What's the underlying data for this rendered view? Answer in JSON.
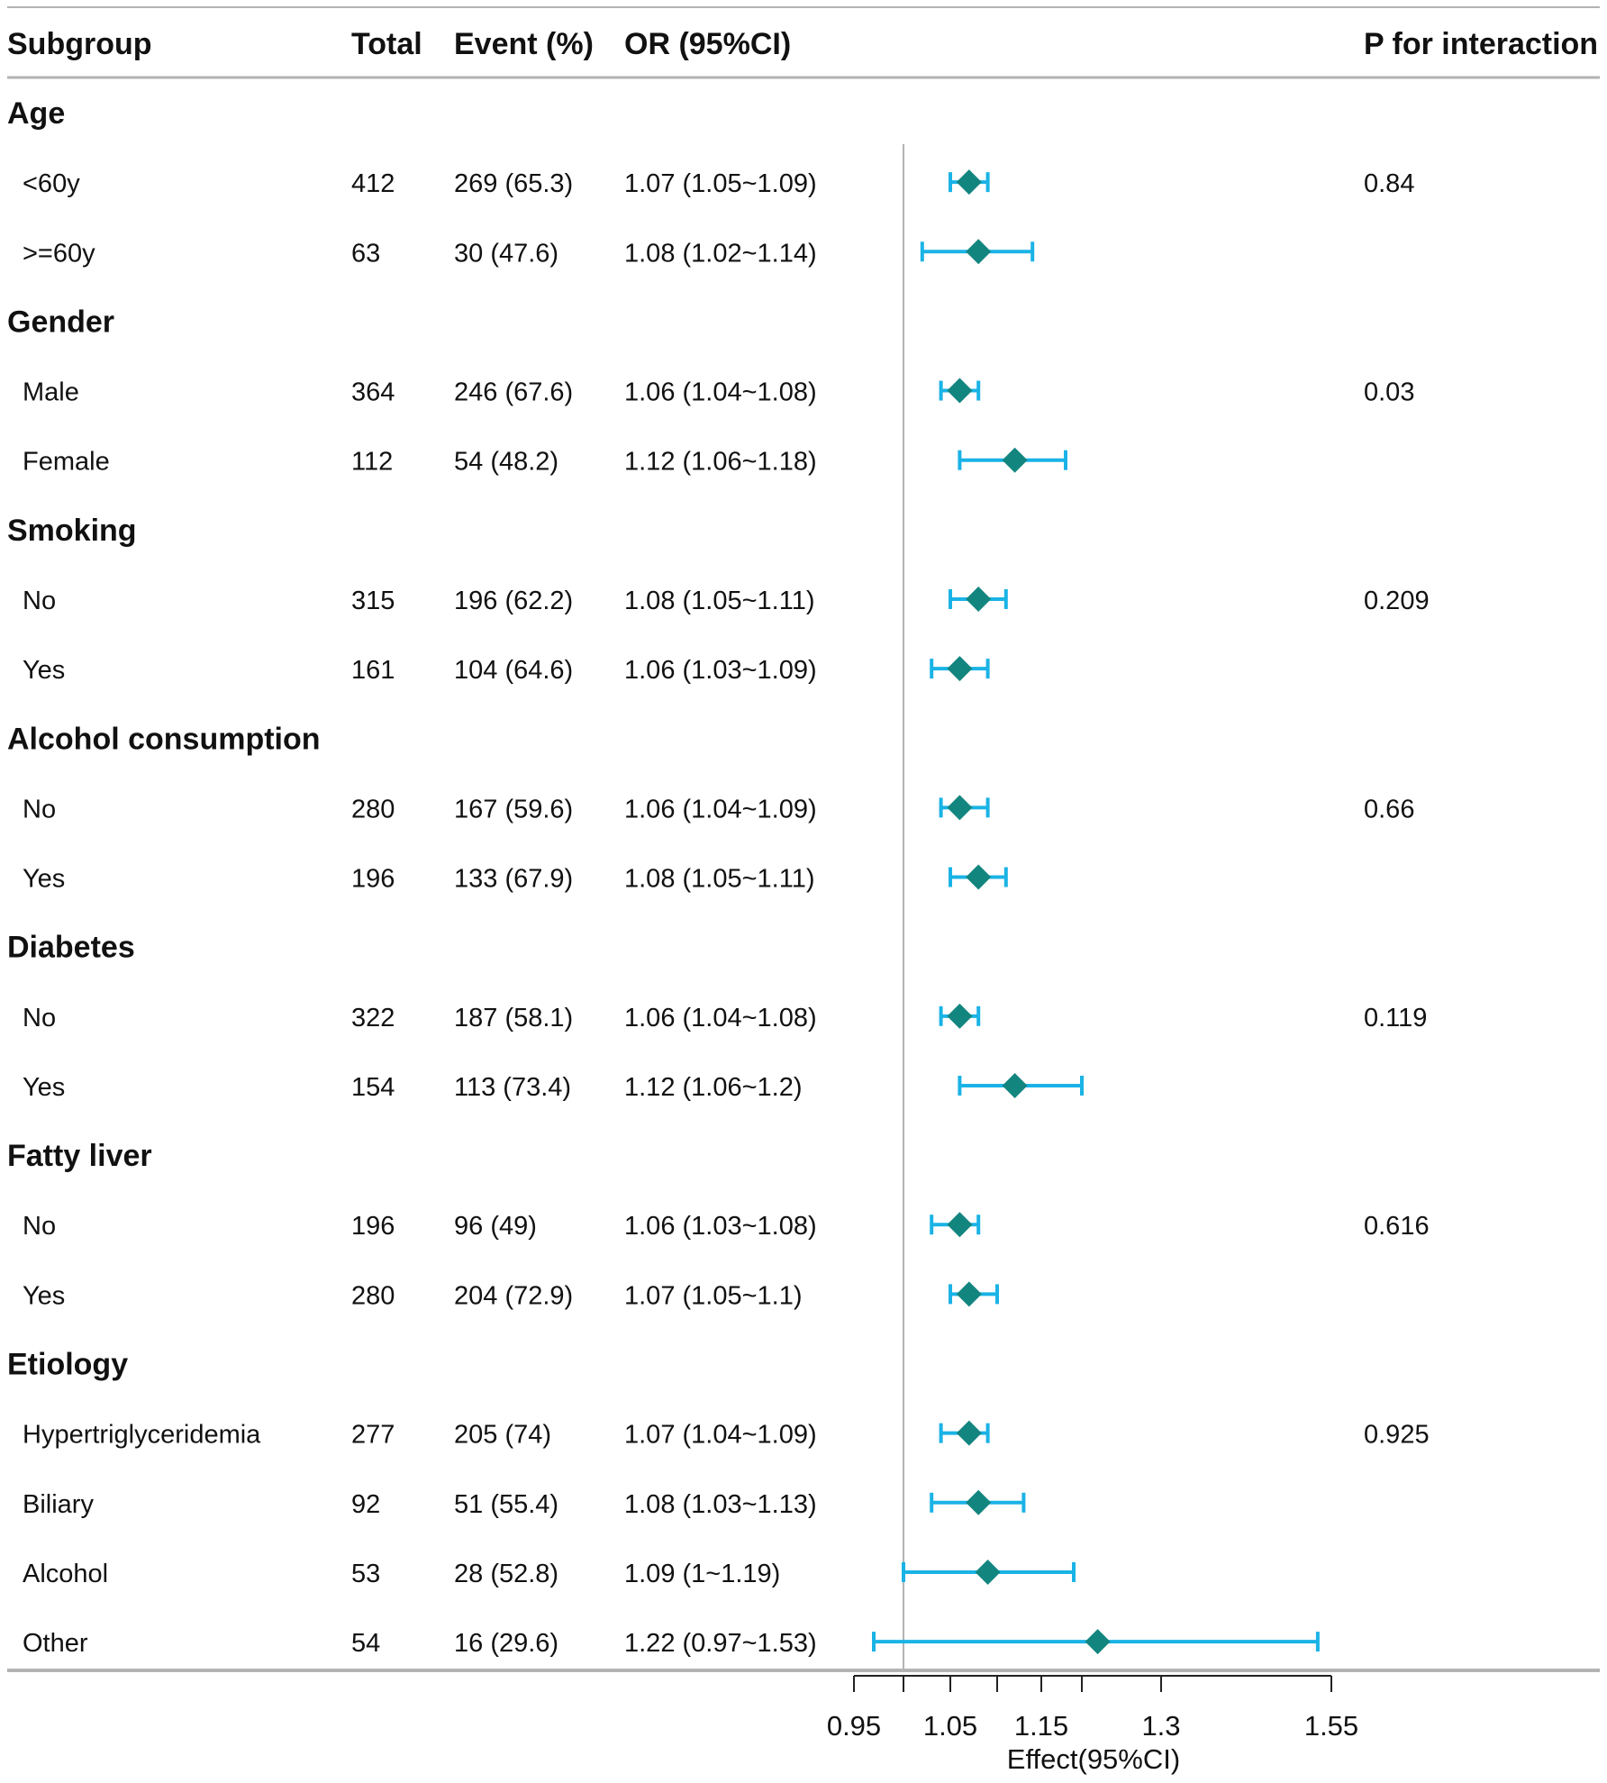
{
  "chart_data": {
    "type": "forest",
    "title": "",
    "columns": {
      "subgroup": "Subgroup",
      "total": "Total",
      "event": "Event (%)",
      "or": "OR (95%CI)",
      "p": "P for interaction"
    },
    "xlabel": "Effect(95%CI)",
    "xlim": [
      0.95,
      1.55
    ],
    "reference_line": 1.0,
    "ticks": [
      {
        "value": 0.95,
        "label": "0.95"
      },
      {
        "value": 1.0,
        "label": ""
      },
      {
        "value": 1.05,
        "label": "1.05"
      },
      {
        "value": 1.1,
        "label": ""
      },
      {
        "value": 1.15,
        "label": "1.15"
      },
      {
        "value": 1.2,
        "label": ""
      },
      {
        "value": 1.3,
        "label": "1.3"
      },
      {
        "value": 1.55,
        "label": "1.55"
      }
    ],
    "groups": [
      {
        "name": "Age",
        "p": "0.84",
        "rows": [
          {
            "label": "<60y",
            "total": "412",
            "event": "269 (65.3)",
            "or_text": "1.07 (1.05~1.09)",
            "or": 1.07,
            "lo": 1.05,
            "hi": 1.09
          },
          {
            "label": ">=60y",
            "total": "63",
            "event": "30 (47.6)",
            "or_text": "1.08 (1.02~1.14)",
            "or": 1.08,
            "lo": 1.02,
            "hi": 1.14
          }
        ]
      },
      {
        "name": "Gender",
        "p": "0.03",
        "rows": [
          {
            "label": "Male",
            "total": "364",
            "event": "246 (67.6)",
            "or_text": "1.06 (1.04~1.08)",
            "or": 1.06,
            "lo": 1.04,
            "hi": 1.08
          },
          {
            "label": "Female",
            "total": "112",
            "event": "54 (48.2)",
            "or_text": "1.12 (1.06~1.18)",
            "or": 1.12,
            "lo": 1.06,
            "hi": 1.18
          }
        ]
      },
      {
        "name": "Smoking",
        "p": "0.209",
        "rows": [
          {
            "label": "No",
            "total": "315",
            "event": "196 (62.2)",
            "or_text": "1.08 (1.05~1.11)",
            "or": 1.08,
            "lo": 1.05,
            "hi": 1.11
          },
          {
            "label": "Yes",
            "total": "161",
            "event": "104 (64.6)",
            "or_text": "1.06 (1.03~1.09)",
            "or": 1.06,
            "lo": 1.03,
            "hi": 1.09
          }
        ]
      },
      {
        "name": "Alcohol consumption",
        "p": "0.66",
        "rows": [
          {
            "label": "No",
            "total": "280",
            "event": "167 (59.6)",
            "or_text": "1.06 (1.04~1.09)",
            "or": 1.06,
            "lo": 1.04,
            "hi": 1.09
          },
          {
            "label": "Yes",
            "total": "196",
            "event": "133 (67.9)",
            "or_text": "1.08 (1.05~1.11)",
            "or": 1.08,
            "lo": 1.05,
            "hi": 1.11
          }
        ]
      },
      {
        "name": "Diabetes",
        "p": "0.119",
        "rows": [
          {
            "label": "No",
            "total": "322",
            "event": "187 (58.1)",
            "or_text": "1.06 (1.04~1.08)",
            "or": 1.06,
            "lo": 1.04,
            "hi": 1.08
          },
          {
            "label": "Yes",
            "total": "154",
            "event": "113 (73.4)",
            "or_text": "1.12 (1.06~1.2)",
            "or": 1.12,
            "lo": 1.06,
            "hi": 1.2
          }
        ]
      },
      {
        "name": "Fatty liver",
        "p": "0.616",
        "rows": [
          {
            "label": "No",
            "total": "196",
            "event": "96 (49)",
            "or_text": "1.06 (1.03~1.08)",
            "or": 1.06,
            "lo": 1.03,
            "hi": 1.08
          },
          {
            "label": "Yes",
            "total": "280",
            "event": "204 (72.9)",
            "or_text": "1.07 (1.05~1.1)",
            "or": 1.07,
            "lo": 1.05,
            "hi": 1.1
          }
        ]
      },
      {
        "name": "Etiology",
        "p": "0.925",
        "rows": [
          {
            "label": "Hypertriglyceridemia",
            "total": "277",
            "event": "205 (74)",
            "or_text": "1.07 (1.04~1.09)",
            "or": 1.07,
            "lo": 1.04,
            "hi": 1.09
          },
          {
            "label": "Biliary",
            "total": "92",
            "event": "51 (55.4)",
            "or_text": "1.08 (1.03~1.13)",
            "or": 1.08,
            "lo": 1.03,
            "hi": 1.13
          },
          {
            "label": "Alcohol",
            "total": "53",
            "event": "28 (52.8)",
            "or_text": "1.09 (1~1.19)",
            "or": 1.09,
            "lo": 1.0,
            "hi": 1.19
          },
          {
            "label": "Other",
            "total": "54",
            "event": "16 (29.6)",
            "or_text": "1.22 (0.97~1.53)",
            "or": 1.22,
            "lo": 0.97,
            "hi": 1.53
          }
        ]
      }
    ]
  },
  "colors": {
    "ci_line": "#1ab3e6",
    "point": "#13857f",
    "reference": "#b3b3b3",
    "rule": "#b3b3b3",
    "text": "#111111"
  }
}
